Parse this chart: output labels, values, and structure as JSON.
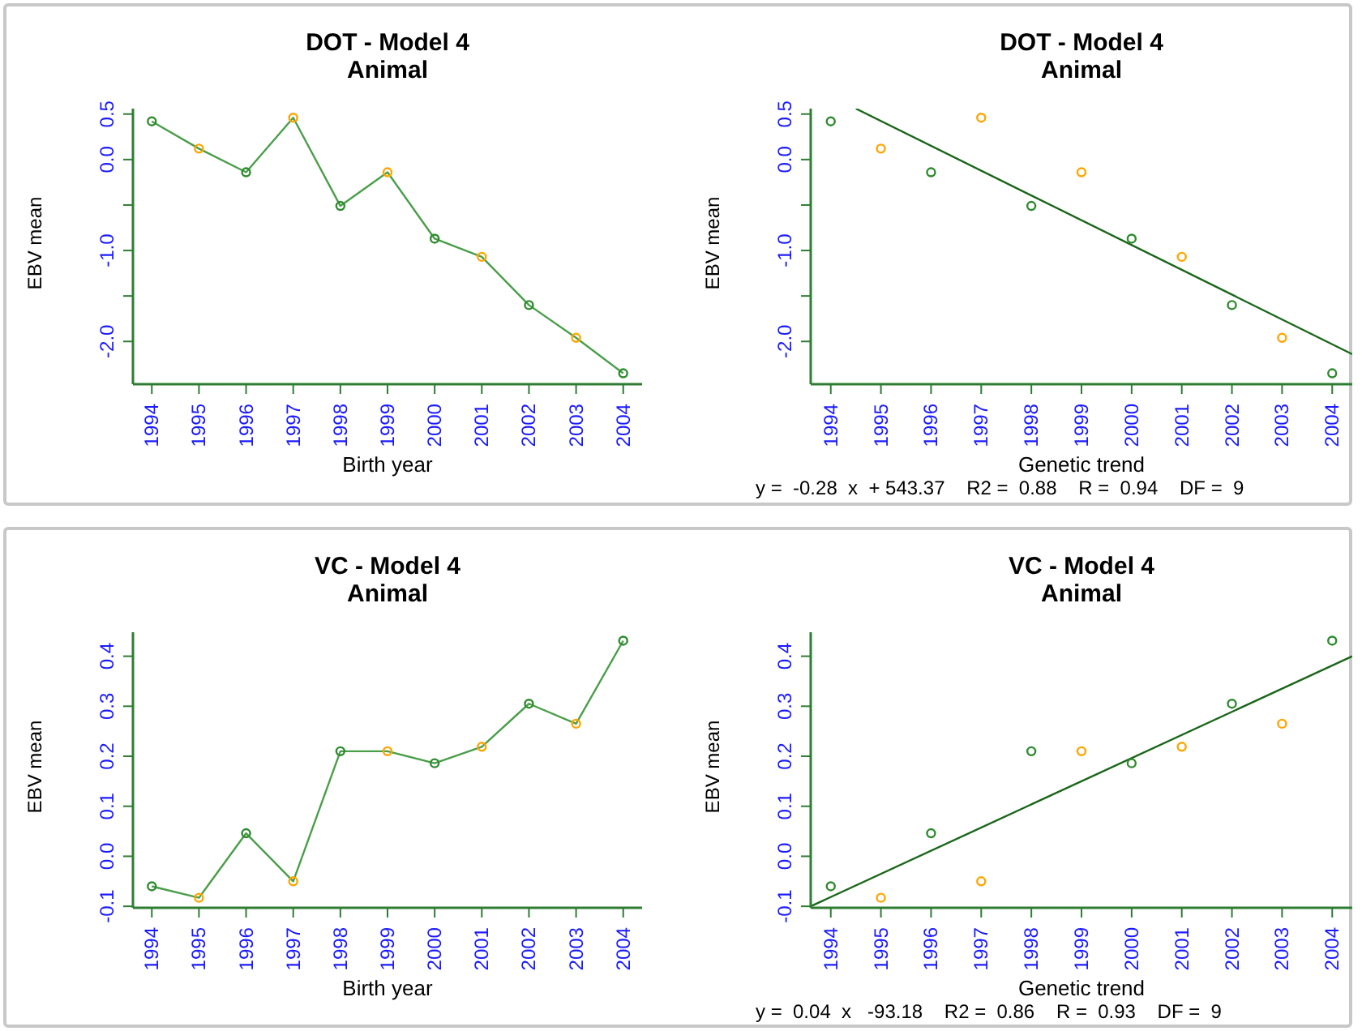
{
  "chart_data": [
    {
      "type": "line",
      "title": "DOT - Model 4",
      "subtitle": "Animal",
      "xlabel": "Birth year",
      "ylabel": "EBV mean",
      "x": [
        1994,
        1995,
        1996,
        1997,
        1998,
        1999,
        2000,
        2001,
        2002,
        2003,
        2004
      ],
      "xlim": [
        1993.6,
        2004.4
      ],
      "xticks": [
        1994,
        1995,
        1996,
        1997,
        1998,
        1999,
        2000,
        2001,
        2002,
        2003,
        2004
      ],
      "ylim": [
        -2.47,
        0.56
      ],
      "yticks": [
        {
          "value": -2.0,
          "label": "-2.0"
        },
        {
          "value": -1.5,
          "label": null
        },
        {
          "value": -1.0,
          "label": "-1.0"
        },
        {
          "value": -0.5,
          "label": null
        },
        {
          "value": 0.0,
          "label": "0.0"
        },
        {
          "value": 0.5,
          "label": "0.5"
        }
      ],
      "marker": "circle",
      "series": [
        {
          "color": "#4a9e4a",
          "colors": [
            "#2e8b2e",
            "#ffa500",
            "#2e8b2e",
            "#ffa500",
            "#2e8b2e",
            "#ffa500",
            "#2e8b2e",
            "#ffa500",
            "#2e8b2e",
            "#ffa500",
            "#2e8b2e"
          ],
          "values": [
            0.42,
            0.12,
            -0.14,
            0.46,
            -0.51,
            -0.14,
            -0.87,
            -1.07,
            -1.6,
            -1.96,
            -2.35
          ]
        }
      ]
    },
    {
      "type": "scatter",
      "title": "DOT - Model 4",
      "subtitle": "Animal",
      "xlabel": "Genetic trend",
      "ylabel": "EBV mean",
      "x": [
        1994,
        1995,
        1996,
        1997,
        1998,
        1999,
        2000,
        2001,
        2002,
        2003,
        2004
      ],
      "xlim": [
        1993.6,
        2004.4
      ],
      "xticks": [
        1994,
        1995,
        1996,
        1997,
        1998,
        1999,
        2000,
        2001,
        2002,
        2003,
        2004
      ],
      "ylim": [
        -2.47,
        0.56
      ],
      "yticks": [
        {
          "value": -2.0,
          "label": "-2.0"
        },
        {
          "value": -1.5,
          "label": null
        },
        {
          "value": -1.0,
          "label": "-1.0"
        },
        {
          "value": -0.5,
          "label": null
        },
        {
          "value": 0.0,
          "label": "0.0"
        },
        {
          "value": 0.5,
          "label": "0.5"
        }
      ],
      "marker": "circle",
      "annotations": [
        "y =  -0.28  x  + 543.37    R2 =  0.88    R =  0.94    DF =  9"
      ],
      "series": [
        {
          "colors": [
            "#2e8b2e",
            "#ffa500",
            "#2e8b2e",
            "#ffa500",
            "#2e8b2e",
            "#ffa500",
            "#2e8b2e",
            "#ffa500",
            "#2e8b2e",
            "#ffa500",
            "#2e8b2e"
          ],
          "values": [
            0.42,
            0.12,
            -0.14,
            0.46,
            -0.51,
            -0.14,
            -0.87,
            -1.07,
            -1.6,
            -1.96,
            -2.35
          ]
        },
        {
          "type": "line",
          "marker": "none",
          "color": "#1a661a",
          "x": [
            1994.5,
            2004.4
          ],
          "values": [
            0.56,
            -2.14
          ]
        }
      ]
    },
    {
      "type": "line",
      "title": "VC - Model 4",
      "subtitle": "Animal",
      "xlabel": "Birth year",
      "ylabel": "EBV mean",
      "x": [
        1994,
        1995,
        1996,
        1997,
        1998,
        1999,
        2000,
        2001,
        2002,
        2003,
        2004
      ],
      "xlim": [
        1993.6,
        2004.4
      ],
      "xticks": [
        1994,
        1995,
        1996,
        1997,
        1998,
        1999,
        2000,
        2001,
        2002,
        2003,
        2004
      ],
      "ylim": [
        -0.103,
        0.448
      ],
      "yticks": [
        {
          "value": -0.1,
          "label": "-0.1"
        },
        {
          "value": 0.0,
          "label": "0.0"
        },
        {
          "value": 0.1,
          "label": "0.1"
        },
        {
          "value": 0.2,
          "label": "0.2"
        },
        {
          "value": 0.3,
          "label": "0.3"
        },
        {
          "value": 0.4,
          "label": "0.4"
        }
      ],
      "marker": "circle",
      "series": [
        {
          "color": "#4a9e4a",
          "colors": [
            "#2e8b2e",
            "#ffa500",
            "#2e8b2e",
            "#ffa500",
            "#2e8b2e",
            "#ffa500",
            "#2e8b2e",
            "#ffa500",
            "#2e8b2e",
            "#ffa500",
            "#2e8b2e"
          ],
          "values": [
            -0.06,
            -0.083,
            0.046,
            -0.05,
            0.21,
            0.21,
            0.186,
            0.219,
            0.305,
            0.265,
            0.431
          ]
        }
      ]
    },
    {
      "type": "scatter",
      "title": "VC - Model 4",
      "subtitle": "Animal",
      "xlabel": "Genetic trend",
      "ylabel": "EBV mean",
      "x": [
        1994,
        1995,
        1996,
        1997,
        1998,
        1999,
        2000,
        2001,
        2002,
        2003,
        2004
      ],
      "xlim": [
        1993.6,
        2004.4
      ],
      "xticks": [
        1994,
        1995,
        1996,
        1997,
        1998,
        1999,
        2000,
        2001,
        2002,
        2003,
        2004
      ],
      "ylim": [
        -0.103,
        0.448
      ],
      "yticks": [
        {
          "value": -0.1,
          "label": "-0.1"
        },
        {
          "value": 0.0,
          "label": "0.0"
        },
        {
          "value": 0.1,
          "label": "0.1"
        },
        {
          "value": 0.2,
          "label": "0.2"
        },
        {
          "value": 0.3,
          "label": "0.3"
        },
        {
          "value": 0.4,
          "label": "0.4"
        }
      ],
      "marker": "circle",
      "annotations": [
        "y =  0.04  x   -93.18    R2 =  0.86    R =  0.93    DF =  9"
      ],
      "series": [
        {
          "colors": [
            "#2e8b2e",
            "#ffa500",
            "#2e8b2e",
            "#ffa500",
            "#2e8b2e",
            "#ffa500",
            "#2e8b2e",
            "#ffa500",
            "#2e8b2e",
            "#ffa500",
            "#2e8b2e"
          ],
          "values": [
            -0.06,
            -0.083,
            0.046,
            -0.05,
            0.21,
            0.21,
            0.186,
            0.219,
            0.305,
            0.265,
            0.431
          ]
        },
        {
          "type": "line",
          "marker": "none",
          "color": "#1a661a",
          "x": [
            1993.6,
            2004.4
          ],
          "values": [
            -0.1,
            0.4
          ]
        }
      ]
    }
  ]
}
